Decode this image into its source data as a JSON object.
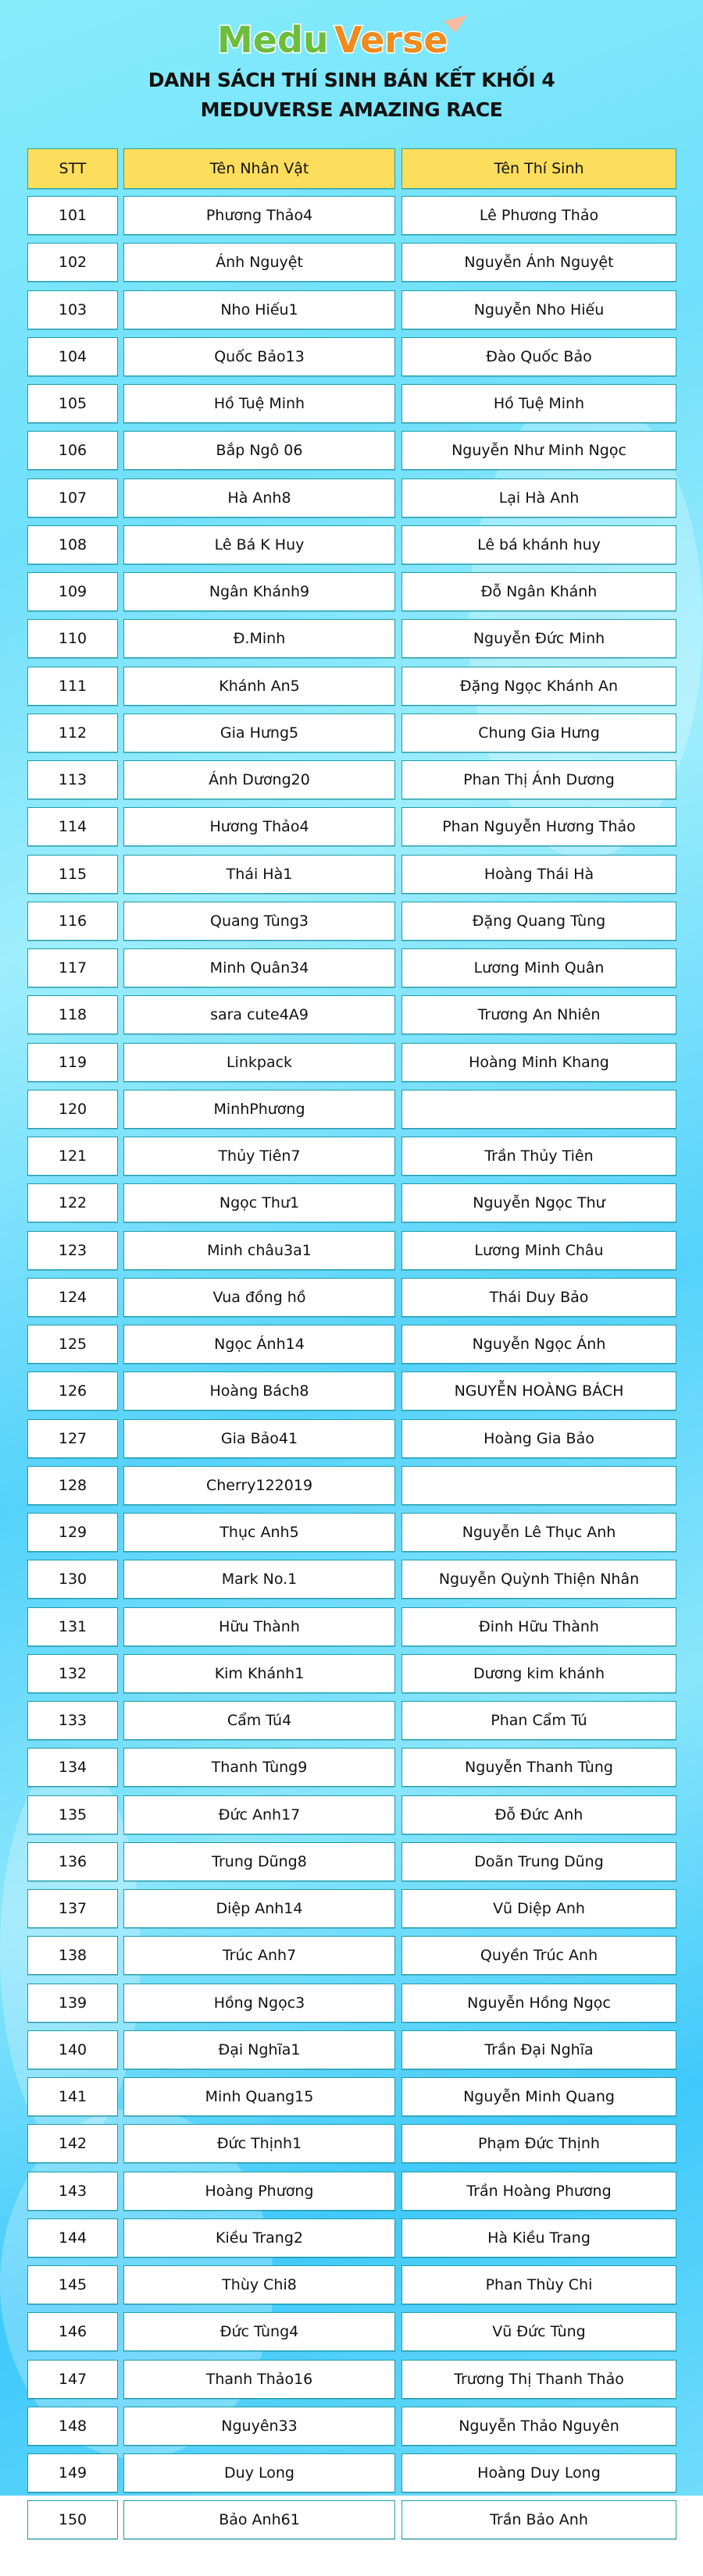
{
  "logo": {
    "text_green": "Medu",
    "text_orange": "Verse"
  },
  "title": {
    "line1": "DANH SÁCH THÍ SINH BÁN KẾT KHỐI 4",
    "line2": "MEDUVERSE AMAZING RACE"
  },
  "colors": {
    "header_bg": "#fddd5c",
    "border": "#1b9ea8",
    "background": "#6fdffb"
  },
  "table": {
    "headers": [
      "STT",
      "Tên Nhân Vật",
      "Tên Thí Sinh"
    ],
    "rows": [
      [
        "101",
        "Phương Thảo4",
        "Lê Phương Thảo"
      ],
      [
        "102",
        "Ánh Nguyệt",
        "Nguyễn Ánh Nguyệt"
      ],
      [
        "103",
        "Nho Hiếu1",
        "Nguyễn Nho Hiếu"
      ],
      [
        "104",
        "Quốc Bảo13",
        "Đào Quốc Bảo"
      ],
      [
        "105",
        "Hồ Tuệ Minh",
        "Hồ Tuệ Minh"
      ],
      [
        "106",
        "Bắp Ngô 06",
        "Nguyễn Như Minh Ngọc"
      ],
      [
        "107",
        "Hà Anh8",
        "Lại Hà Anh"
      ],
      [
        "108",
        "Lê Bá K Huy",
        "Lê bá khánh huy"
      ],
      [
        "109",
        "Ngân Khánh9",
        "Đỗ Ngân Khánh"
      ],
      [
        "110",
        "Đ.Minh",
        "Nguyễn Đức Minh"
      ],
      [
        "111",
        "Khánh An5",
        "Đặng Ngọc Khánh An"
      ],
      [
        "112",
        "Gia Hưng5",
        "Chung Gia Hưng"
      ],
      [
        "113",
        "Ánh Dương20",
        "Phan Thị Ánh Dương"
      ],
      [
        "114",
        "Hương Thảo4",
        "Phan Nguyễn Hương Thảo"
      ],
      [
        "115",
        "Thái Hà1",
        "Hoàng Thái Hà"
      ],
      [
        "116",
        "Quang Tùng3",
        "Đặng Quang Tùng"
      ],
      [
        "117",
        "Minh Quân34",
        "Lương Minh Quân"
      ],
      [
        "118",
        "sara cute4A9",
        "Trương An Nhiên"
      ],
      [
        "119",
        "Linkpack",
        "Hoàng Minh Khang"
      ],
      [
        "120",
        "MinhPhương",
        ""
      ],
      [
        "121",
        "Thủy Tiên7",
        "Trần Thủy Tiên"
      ],
      [
        "122",
        "Ngọc Thư1",
        "Nguyễn Ngọc Thư"
      ],
      [
        "123",
        "Minh châu3a1",
        "Lương Minh Châu"
      ],
      [
        "124",
        "Vua đồng hồ",
        "Thái Duy Bảo"
      ],
      [
        "125",
        "Ngọc Ánh14",
        "Nguyễn Ngọc Ánh"
      ],
      [
        "126",
        "Hoàng Bách8",
        "NGUYỄN HOÀNG BÁCH"
      ],
      [
        "127",
        "Gia Bảo41",
        "Hoàng Gia Bảo"
      ],
      [
        "128",
        "Cherry122019",
        ""
      ],
      [
        "129",
        "Thục Anh5",
        "Nguyễn Lê Thục Anh"
      ],
      [
        "130",
        "Mark No.1",
        "Nguyễn Quỳnh Thiện Nhân"
      ],
      [
        "131",
        "Hữu Thành",
        "Đinh Hữu Thành"
      ],
      [
        "132",
        "Kim Khánh1",
        "Dương kim khánh"
      ],
      [
        "133",
        "Cẩm Tú4",
        "Phan Cẩm Tú"
      ],
      [
        "134",
        "Thanh Tùng9",
        "Nguyễn Thanh Tùng"
      ],
      [
        "135",
        "Đức Anh17",
        "Đỗ Đức Anh"
      ],
      [
        "136",
        "Trung Dũng8",
        "Doãn Trung Dũng"
      ],
      [
        "137",
        "Diệp Anh14",
        "Vũ Diệp Anh"
      ],
      [
        "138",
        "Trúc Anh7",
        "Quyền Trúc Anh"
      ],
      [
        "139",
        "Hồng Ngọc3",
        "Nguyễn Hồng Ngọc"
      ],
      [
        "140",
        "Đại Nghĩa1",
        "Trần Đại Nghĩa"
      ],
      [
        "141",
        "Minh Quang15",
        "Nguyễn Minh Quang"
      ],
      [
        "142",
        "Đức Thịnh1",
        "Phạm Đức Thịnh"
      ],
      [
        "143",
        "Hoàng Phương",
        "Trần Hoàng Phương"
      ],
      [
        "144",
        "Kiều Trang2",
        "Hà Kiều Trang"
      ],
      [
        "145",
        "Thùy Chi8",
        "Phan Thùy Chi"
      ],
      [
        "146",
        "Đức Tùng4",
        "Vũ Đức Tùng"
      ],
      [
        "147",
        "Thanh Thảo16",
        "Trương Thị Thanh Thảo"
      ],
      [
        "148",
        "Nguyên33",
        "Nguyễn Thảo Nguyên"
      ],
      [
        "149",
        "Duy Long",
        "Hoàng Duy Long"
      ],
      [
        "150",
        "Bảo Anh61",
        "Trần Bảo Anh"
      ]
    ]
  }
}
